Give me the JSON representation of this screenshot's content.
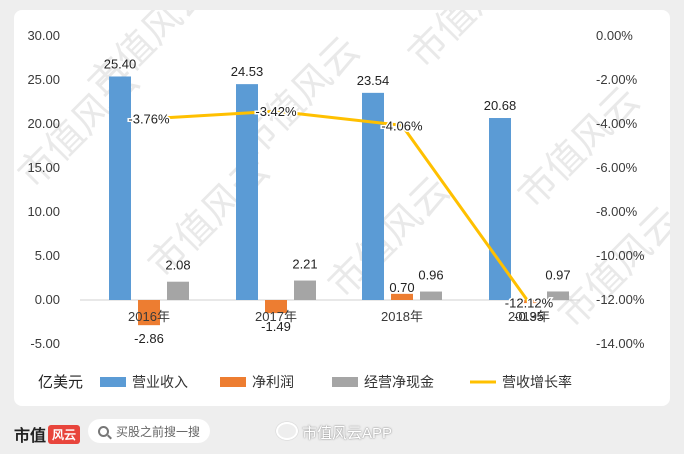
{
  "chart_data": {
    "type": "bar",
    "unit_label": "亿美元",
    "categories": [
      "2016年",
      "2017年",
      "2018年",
      "2019年"
    ],
    "series": [
      {
        "name": "营业收入",
        "kind": "bar",
        "axis": "left",
        "color": "#5b9bd5",
        "values": [
          25.4,
          24.53,
          23.54,
          20.68
        ],
        "labels": [
          "25.40",
          "24.53",
          "23.54",
          "20.68"
        ],
        "label_color": "#222222"
      },
      {
        "name": "净利润",
        "kind": "bar",
        "axis": "left",
        "color": "#ed7d31",
        "values": [
          -2.86,
          -1.49,
          0.7,
          -0.35
        ],
        "labels": [
          "-2.86",
          "-1.49",
          "0.70",
          "-0.35"
        ],
        "label_color": "#c55a11"
      },
      {
        "name": "经营净现金",
        "kind": "bar",
        "axis": "left",
        "color": "#a5a5a5",
        "values": [
          2.08,
          2.21,
          0.96,
          0.97
        ],
        "labels": [
          "2.08",
          "2.21",
          "0.96",
          "0.97"
        ],
        "label_color": "#222222"
      },
      {
        "name": "营收增长率",
        "kind": "line",
        "axis": "right",
        "color": "#ffc000",
        "values": [
          -3.76,
          -3.42,
          -4.06,
          -12.12
        ],
        "labels": [
          "-3.76%",
          "-3.42%",
          "-4.06%",
          "-12.12%"
        ],
        "label_color": "#222222"
      }
    ],
    "left_axis": {
      "min": -5,
      "max": 30,
      "step": 5,
      "ticks": [
        "-5.00",
        "0.00",
        "5.00",
        "10.00",
        "15.00",
        "20.00",
        "25.00",
        "30.00"
      ]
    },
    "right_axis": {
      "min": -14,
      "max": 0,
      "step": 2,
      "ticks": [
        "-14.00%",
        "-12.00%",
        "-10.00%",
        "-8.00%",
        "-6.00%",
        "-4.00%",
        "-2.00%",
        "0.00%"
      ]
    },
    "grid": false,
    "legend_position": "bottom"
  },
  "watermark": "市值风云",
  "footer": {
    "brand": "市值",
    "brand_mark": "风云",
    "search_placeholder": "买股之前搜一搜",
    "weibo_handle": "市值风云APP"
  }
}
